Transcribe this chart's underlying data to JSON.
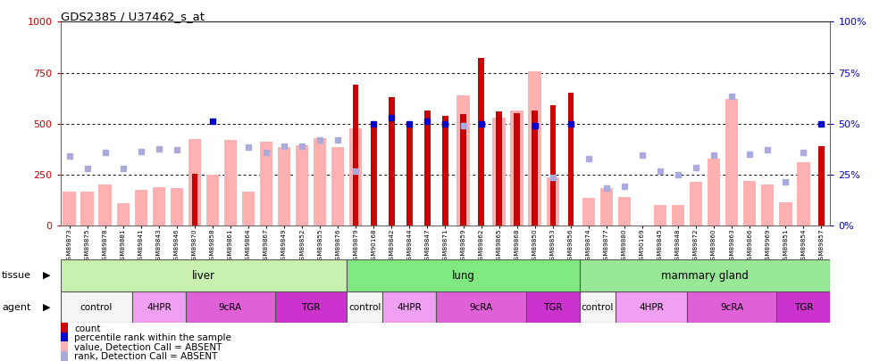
{
  "title": "GDS2385 / U37462_s_at",
  "samples": [
    "GSM89873",
    "GSM89875",
    "GSM89878",
    "GSM89881",
    "GSM89841",
    "GSM89843",
    "GSM89846",
    "GSM89870",
    "GSM89858",
    "GSM89861",
    "GSM89864",
    "GSM89867",
    "GSM89849",
    "GSM89852",
    "GSM89855",
    "GSM89876",
    "GSM89879",
    "GSM90168",
    "GSM89842",
    "GSM89844",
    "GSM89847",
    "GSM89871",
    "GSM89859",
    "GSM89862",
    "GSM89865",
    "GSM89868",
    "GSM89850",
    "GSM89853",
    "GSM89856",
    "GSM89874",
    "GSM89877",
    "GSM89880",
    "GSM90169",
    "GSM89845",
    "GSM89848",
    "GSM89872",
    "GSM89860",
    "GSM89863",
    "GSM89866",
    "GSM89969",
    "GSM89851",
    "GSM89854",
    "GSM89857"
  ],
  "count": [
    null,
    null,
    null,
    null,
    null,
    null,
    null,
    255,
    null,
    null,
    null,
    null,
    null,
    null,
    null,
    null,
    690,
    500,
    630,
    500,
    565,
    540,
    545,
    820,
    560,
    550,
    565,
    590,
    650,
    null,
    null,
    null,
    null,
    null,
    null,
    null,
    null,
    null,
    null,
    null,
    null,
    null,
    390
  ],
  "absent_value": [
    165,
    165,
    200,
    110,
    175,
    190,
    185,
    425,
    250,
    420,
    165,
    410,
    385,
    395,
    430,
    385,
    475,
    null,
    null,
    null,
    null,
    null,
    640,
    null,
    530,
    565,
    755,
    235,
    null,
    135,
    185,
    140,
    null,
    100,
    100,
    215,
    330,
    620,
    220,
    200,
    115,
    310,
    null
  ],
  "percentile_rank": [
    null,
    null,
    null,
    null,
    null,
    null,
    null,
    null,
    510,
    null,
    null,
    null,
    null,
    null,
    null,
    null,
    null,
    500,
    530,
    500,
    510,
    500,
    null,
    500,
    null,
    null,
    490,
    null,
    500,
    null,
    null,
    null,
    null,
    null,
    null,
    null,
    null,
    null,
    null,
    null,
    null,
    null,
    500
  ],
  "absent_rank": [
    340,
    280,
    360,
    280,
    365,
    375,
    370,
    null,
    null,
    null,
    385,
    360,
    390,
    390,
    420,
    420,
    265,
    null,
    null,
    null,
    null,
    null,
    490,
    null,
    null,
    null,
    null,
    235,
    null,
    330,
    185,
    195,
    345,
    265,
    250,
    285,
    345,
    635,
    350,
    370,
    215,
    360,
    null
  ],
  "tissues": [
    {
      "name": "liver",
      "start": 0,
      "end": 15,
      "color": "#c8f0b0"
    },
    {
      "name": "lung",
      "start": 16,
      "end": 28,
      "color": "#80e880"
    },
    {
      "name": "mammary gland",
      "start": 29,
      "end": 42,
      "color": "#98e898"
    }
  ],
  "agents": [
    {
      "name": "control",
      "start": 0,
      "end": 3,
      "color": "#f4f4f4"
    },
    {
      "name": "4HPR",
      "start": 4,
      "end": 6,
      "color": "#f0a0f0"
    },
    {
      "name": "9cRA",
      "start": 7,
      "end": 11,
      "color": "#e060d8"
    },
    {
      "name": "TGR",
      "start": 12,
      "end": 15,
      "color": "#cc33cc"
    },
    {
      "name": "control",
      "start": 16,
      "end": 17,
      "color": "#f4f4f4"
    },
    {
      "name": "4HPR",
      "start": 18,
      "end": 20,
      "color": "#f0a0f0"
    },
    {
      "name": "9cRA",
      "start": 21,
      "end": 25,
      "color": "#e060d8"
    },
    {
      "name": "TGR",
      "start": 26,
      "end": 28,
      "color": "#cc33cc"
    },
    {
      "name": "control",
      "start": 29,
      "end": 30,
      "color": "#f4f4f4"
    },
    {
      "name": "4HPR",
      "start": 31,
      "end": 34,
      "color": "#f0a0f0"
    },
    {
      "name": "9cRA",
      "start": 35,
      "end": 39,
      "color": "#e060d8"
    },
    {
      "name": "TGR",
      "start": 40,
      "end": 42,
      "color": "#cc33cc"
    }
  ],
  "yticks_left": [
    0,
    250,
    500,
    750,
    1000
  ],
  "yticks_right": [
    0,
    25,
    50,
    75,
    100
  ],
  "count_color": "#cc0000",
  "absent_value_color": "#ffb0b0",
  "percentile_color": "#0000cc",
  "absent_rank_color": "#aaaadd"
}
